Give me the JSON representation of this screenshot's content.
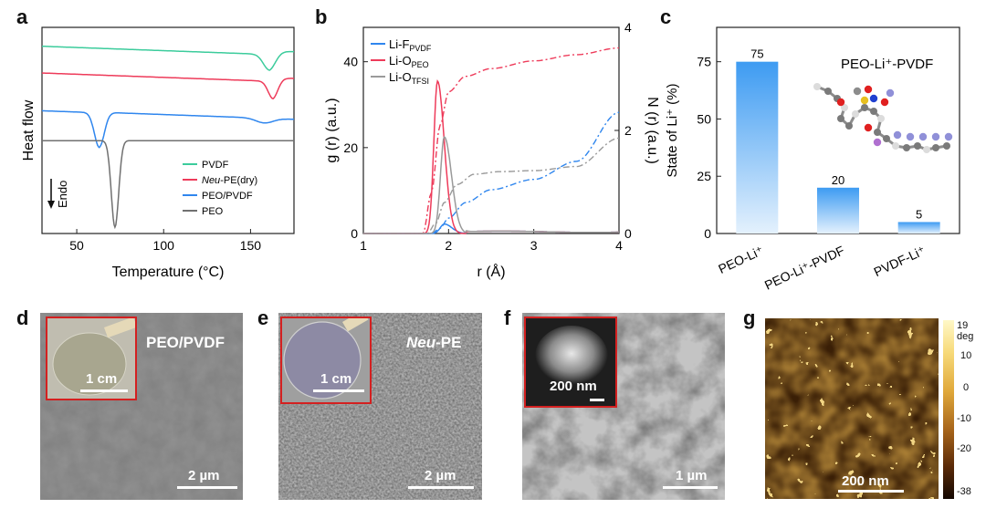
{
  "panels": {
    "a": "a",
    "b": "b",
    "c": "c",
    "d": "d",
    "e": "e",
    "f": "f",
    "g": "g"
  },
  "chart_data": [
    {
      "id": "a",
      "type": "line",
      "xlabel": "Temperature (°C)",
      "ylabel": "Heat flow",
      "xlim": [
        30,
        175
      ],
      "xticks": [
        50,
        100,
        150
      ],
      "endo_label": "Endo",
      "legend_position": "bottom-right",
      "series": [
        {
          "name": "PVDF",
          "color": "#3ccc9c",
          "offset": 3.0,
          "dip_center": 161,
          "dip_depth": 0.5,
          "dip_width": 5
        },
        {
          "name_prefix": "Neu",
          "name_suffix": "-PE(dry)",
          "color": "#ee3b5a",
          "offset": 2.15,
          "dip_center": 163,
          "dip_depth": 0.55,
          "dip_width": 4
        },
        {
          "name": "PEO/PVDF",
          "color": "#2f86ee",
          "offset": 0.95,
          "dip_center": 63,
          "dip_depth": 1.1,
          "dip_width": 4,
          "dip2_center": 158,
          "dip2_depth": 0.15,
          "dip2_width": 7
        },
        {
          "name": "PEO",
          "color": "#707070",
          "offset": 0.0,
          "dip_center": 72,
          "dip_depth": 2.75,
          "dip_width": 3
        }
      ]
    },
    {
      "id": "b",
      "type": "line",
      "xlabel": "r  (Å)",
      "ylabel": "g (r) (a.u.)",
      "y2label": "N (r) (a.u.)",
      "xlim": [
        1,
        4
      ],
      "ylim": [
        0,
        48
      ],
      "y2lim": [
        0,
        4
      ],
      "xticks": [
        1,
        2,
        3,
        4
      ],
      "yticks": [
        0,
        20,
        40
      ],
      "y2ticks": [
        0,
        2,
        4
      ],
      "legend_position": "top-left",
      "series": [
        {
          "label_main": "Li-F",
          "label_sub": "PVDF",
          "color": "#2f86ee",
          "g_peak_r": 1.95,
          "g_peak": 2.2,
          "g_width": 0.09,
          "N_r": [
            1.0,
            1.8,
            1.9,
            2.0,
            2.2,
            2.5,
            3.0,
            3.5,
            4.0
          ],
          "N_values": [
            0,
            0,
            0.1,
            0.3,
            0.6,
            0.85,
            1.05,
            1.4,
            2.35
          ]
        },
        {
          "label_main": "Li-O",
          "label_sub": "PEO",
          "color": "#ee3b5a",
          "g_peak_r": 1.87,
          "g_peak": 35.5,
          "g_width": 0.08,
          "N_r": [
            1.0,
            1.7,
            1.8,
            1.9,
            2.0,
            2.2,
            2.5,
            3.0,
            3.5,
            4.0
          ],
          "N_values": [
            0,
            0,
            0.8,
            2.1,
            2.75,
            3.05,
            3.2,
            3.35,
            3.47,
            3.6
          ]
        },
        {
          "label_main": "Li-O",
          "label_sub": "TFSI",
          "color": "#9a9a9a",
          "g_peak_r": 1.95,
          "g_peak": 22.5,
          "g_width": 0.085,
          "N_r": [
            1.0,
            1.75,
            1.85,
            1.95,
            2.1,
            2.3,
            2.6,
            3.0,
            3.5,
            4.0
          ],
          "N_values": [
            0,
            0,
            0.2,
            0.6,
            0.95,
            1.15,
            1.2,
            1.22,
            1.3,
            1.85
          ]
        }
      ]
    },
    {
      "id": "c",
      "type": "bar",
      "ylabel": "State of Li⁺ (%)",
      "ylim": [
        0,
        90
      ],
      "yticks": [
        0,
        25,
        50,
        75
      ],
      "categories": [
        "PEO-Li⁺",
        "PEO-Li⁺-PVDF",
        "PVDF-Li⁺"
      ],
      "values": [
        75,
        20,
        5
      ],
      "annotation": "PEO-Li⁺-PVDF"
    },
    {
      "id": "g",
      "type": "heatmap",
      "colorbar_unit": "deg",
      "colorbar_max": "19 deg",
      "colorbar_ticks": [
        "10",
        "0",
        "-10",
        "-20"
      ],
      "colorbar_min": "-38"
    }
  ],
  "micrographs": {
    "d": {
      "title": "PEO/PVDF",
      "inset_scale": "1 cm",
      "scale": "2 µm"
    },
    "e": {
      "title_prefix": "Neu",
      "title_suffix": "-PE",
      "inset_scale": "1 cm",
      "scale": "2 µm"
    },
    "f": {
      "inset_scale": "200 nm",
      "scale": "1 µm"
    },
    "g": {
      "scale": "200 nm"
    }
  }
}
